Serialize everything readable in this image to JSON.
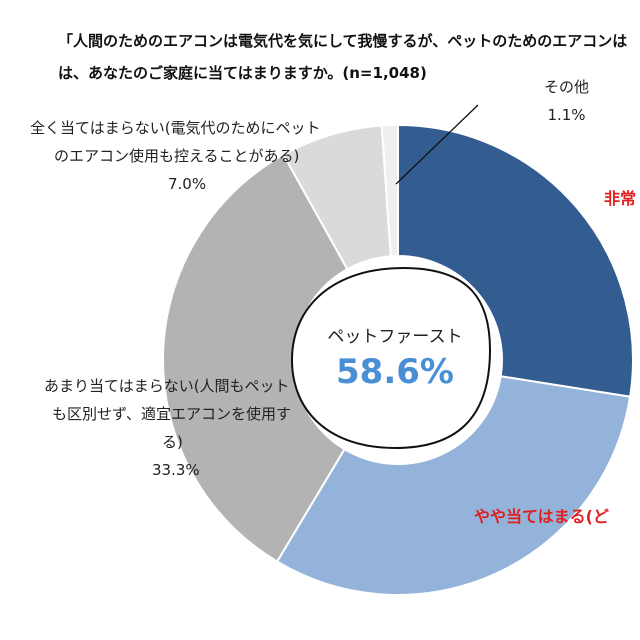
{
  "title": {
    "line1": "「人間のためのエアコンは電気代を気にして我慢するが、ペットのためのエアコンは",
    "line2": "は、あなたのご家庭に当てはまりますか。(n=1,048)"
  },
  "center": {
    "caption": "ペットファースト",
    "value": "58.6%"
  },
  "labels": {
    "other": {
      "name": "その他",
      "value": "1.1%"
    },
    "not_at_all": {
      "line1": "全く当てはまらない(電気代のためにペット",
      "line2": "のエアコン使用も控えることがある)",
      "value": "7.0%"
    },
    "not_really": {
      "line1": "あまり当てはまらない(人間もペット",
      "line2": "も区別せず、適宜エアコンを使用す",
      "line3": "る)",
      "value": "33.3%"
    },
    "very_true_cut": "非常",
    "somewhat_cut": "やや当てはまる(ど"
  },
  "chart_data": {
    "type": "pie",
    "variant": "donut",
    "title": "「人間のためのエアコンは電気代を気にして我慢するが、ペットのためのエアコンは…は、あなたのご家庭に当てはまりますか。(n=1,048)",
    "center_text": "ペットファースト 58.6%",
    "start_angle_deg": 0,
    "direction": "clockwise",
    "slices": [
      {
        "label": "非常(に当てはまる)",
        "value": 27.5,
        "color": "#335d90"
      },
      {
        "label": "やや当てはまる(ど…",
        "value": 31.1,
        "color": "#93b3da"
      },
      {
        "label": "あまり当てはまらない(人間もペットも区別せず、適宜エアコンを使用する)",
        "value": 33.3,
        "color": "#b3b3b3"
      },
      {
        "label": "全く当てはまらない(電気代のためにペットのエアコン使用も控えることがある)",
        "value": 7.0,
        "color": "#dadada"
      },
      {
        "label": "その他",
        "value": 1.1,
        "color": "#efefef"
      }
    ]
  }
}
